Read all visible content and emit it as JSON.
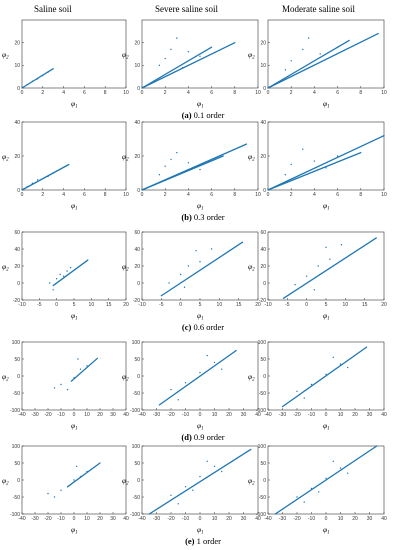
{
  "column_titles": [
    "Saline soil",
    "Severe saline soil",
    "Moderate saline soil"
  ],
  "colors": {
    "series": "#1f77b4",
    "axis": "#333333"
  },
  "axis_labels": {
    "x": "φ",
    "x_sub": "1",
    "y": "φ",
    "y_sub": "2"
  },
  "chart_data": [
    {
      "row": 0,
      "caption_letter": "(a)",
      "caption_text": " 0.1 order",
      "panels": [
        {
          "type": "scatter",
          "column": "Saline soil",
          "xlim": [
            0,
            10
          ],
          "ylim": [
            0,
            30
          ],
          "xticks": [
            0,
            2,
            4,
            6,
            8,
            10
          ],
          "yticks": [
            0,
            10,
            20
          ],
          "lines": [
            [
              [
                0,
                0
              ],
              [
                3,
                8.5
              ]
            ]
          ],
          "points": [
            [
              0.5,
              1.5
            ],
            [
              1,
              3
            ],
            [
              1.5,
              4
            ],
            [
              2,
              5.5
            ],
            [
              2.5,
              7
            ]
          ]
        },
        {
          "type": "scatter",
          "column": "Severe saline soil",
          "xlim": [
            0,
            10
          ],
          "ylim": [
            0,
            30
          ],
          "xticks": [
            0,
            2,
            4,
            6,
            8,
            10
          ],
          "yticks": [
            0,
            10,
            20
          ],
          "lines": [
            [
              [
                0,
                0
              ],
              [
                8,
                20
              ]
            ],
            [
              [
                0,
                0
              ],
              [
                6,
                18
              ]
            ]
          ],
          "points": [
            [
              2,
              13
            ],
            [
              2.5,
              17
            ],
            [
              3,
              22
            ],
            [
              4,
              16
            ],
            [
              1.5,
              10
            ],
            [
              5,
              14
            ],
            [
              3.5,
              9
            ]
          ]
        },
        {
          "type": "scatter",
          "column": "Moderate saline soil",
          "xlim": [
            0,
            10
          ],
          "ylim": [
            0,
            30
          ],
          "xticks": [
            0,
            2,
            4,
            6,
            8,
            10
          ],
          "yticks": [
            0,
            10,
            20
          ],
          "lines": [
            [
              [
                0,
                0
              ],
              [
                9.5,
                24
              ]
            ],
            [
              [
                0,
                0
              ],
              [
                7,
                21
              ]
            ]
          ],
          "points": [
            [
              2,
              12
            ],
            [
              3,
              17
            ],
            [
              3.5,
              22
            ],
            [
              4.5,
              15
            ],
            [
              1.5,
              8
            ],
            [
              6,
              18
            ]
          ]
        }
      ]
    },
    {
      "row": 1,
      "caption_letter": "(b)",
      "caption_text": " 0.3 order",
      "panels": [
        {
          "type": "scatter",
          "column": "Saline soil",
          "xlim": [
            0,
            10
          ],
          "ylim": [
            0,
            40
          ],
          "xticks": [
            0,
            2,
            4,
            6,
            8,
            10
          ],
          "yticks": [
            0,
            20,
            40
          ],
          "lines": [
            [
              [
                0,
                0
              ],
              [
                4.5,
                15
              ]
            ]
          ],
          "points": [
            [
              0.5,
              2
            ],
            [
              1,
              4
            ],
            [
              1.5,
              6
            ],
            [
              2.5,
              8
            ],
            [
              3,
              10
            ]
          ]
        },
        {
          "type": "scatter",
          "column": "Severe saline soil",
          "xlim": [
            0,
            10
          ],
          "ylim": [
            0,
            40
          ],
          "xticks": [
            0,
            2,
            4,
            6,
            8,
            10
          ],
          "yticks": [
            0,
            20,
            40
          ],
          "lines": [
            [
              [
                0,
                0
              ],
              [
                9,
                27
              ]
            ],
            [
              [
                0,
                0
              ],
              [
                7,
                20
              ]
            ]
          ],
          "points": [
            [
              2,
              14
            ],
            [
              3,
              22
            ],
            [
              2.5,
              18
            ],
            [
              4,
              16
            ],
            [
              5,
              12
            ],
            [
              1.5,
              9
            ]
          ]
        },
        {
          "type": "scatter",
          "column": "Moderate saline soil",
          "xlim": [
            0,
            10
          ],
          "ylim": [
            0,
            40
          ],
          "xticks": [
            0,
            2,
            4,
            6,
            8,
            10
          ],
          "yticks": [
            0,
            20,
            40
          ],
          "lines": [
            [
              [
                0,
                0
              ],
              [
                10,
                32
              ]
            ],
            [
              [
                0,
                0
              ],
              [
                8,
                22
              ]
            ]
          ],
          "points": [
            [
              2,
              15
            ],
            [
              3,
              24
            ],
            [
              4,
              17
            ],
            [
              5,
              13
            ],
            [
              1.5,
              9
            ],
            [
              6,
              20
            ]
          ]
        }
      ]
    },
    {
      "row": 2,
      "caption_letter": "(c)",
      "caption_text": " 0.6 order",
      "panels": [
        {
          "type": "scatter",
          "column": "Saline soil",
          "xlim": [
            -10,
            20
          ],
          "ylim": [
            -20,
            60
          ],
          "xticks": [
            -10,
            -5,
            0,
            5,
            10,
            15,
            20
          ],
          "yticks": [
            -20,
            0,
            20,
            40,
            60
          ],
          "lines": [
            [
              [
                -1,
                -3
              ],
              [
                9,
                27
              ]
            ]
          ],
          "points": [
            [
              -2,
              0
            ],
            [
              0,
              5
            ],
            [
              1,
              10
            ],
            [
              2,
              8
            ],
            [
              3,
              14
            ],
            [
              -1,
              -8
            ],
            [
              4,
              18
            ]
          ]
        },
        {
          "type": "scatter",
          "column": "Severe saline soil",
          "xlim": [
            -10,
            20
          ],
          "ylim": [
            -20,
            60
          ],
          "xticks": [
            -10,
            -5,
            0,
            5,
            10,
            15,
            20
          ],
          "yticks": [
            -20,
            0,
            20,
            40,
            60
          ],
          "lines": [
            [
              [
                -5,
                -15
              ],
              [
                16,
                48
              ]
            ]
          ],
          "points": [
            [
              -3,
              0
            ],
            [
              0,
              10
            ],
            [
              2,
              20
            ],
            [
              5,
              25
            ],
            [
              4,
              38
            ],
            [
              8,
              40
            ],
            [
              1,
              -5
            ]
          ]
        },
        {
          "type": "scatter",
          "column": "Moderate saline soil",
          "xlim": [
            -10,
            20
          ],
          "ylim": [
            -20,
            60
          ],
          "xticks": [
            -10,
            -5,
            0,
            5,
            10,
            15,
            20
          ],
          "yticks": [
            -20,
            0,
            20,
            40,
            60
          ],
          "lines": [
            [
              [
                -6,
                -18
              ],
              [
                18,
                53
              ]
            ]
          ],
          "points": [
            [
              -3,
              -2
            ],
            [
              0,
              8
            ],
            [
              3,
              20
            ],
            [
              6,
              28
            ],
            [
              5,
              42
            ],
            [
              9,
              45
            ],
            [
              2,
              -8
            ]
          ]
        }
      ]
    },
    {
      "row": 3,
      "caption_letter": "(d)",
      "caption_text": " 0.9 order",
      "panels": [
        {
          "type": "scatter",
          "column": "Saline soil",
          "xlim": [
            -40,
            40
          ],
          "ylim": [
            -100,
            100
          ],
          "xticks": [
            -40,
            -30,
            -20,
            -10,
            0,
            10,
            20,
            30,
            40
          ],
          "yticks": [
            -100,
            -50,
            0,
            50,
            100
          ],
          "lines": [
            [
              [
                -2,
                -15
              ],
              [
                18,
                52
              ]
            ]
          ],
          "points": [
            [
              -10,
              -25
            ],
            [
              -5,
              -40
            ],
            [
              0,
              -5
            ],
            [
              5,
              20
            ],
            [
              10,
              30
            ],
            [
              -15,
              -35
            ],
            [
              3,
              50
            ]
          ]
        },
        {
          "type": "scatter",
          "column": "Severe saline soil",
          "xlim": [
            -40,
            40
          ],
          "ylim": [
            -100,
            100
          ],
          "xticks": [
            -40,
            -30,
            -20,
            -10,
            0,
            10,
            20,
            30,
            40
          ],
          "yticks": [
            -100,
            -50,
            0,
            50,
            100
          ],
          "lines": [
            [
              [
                -28,
                -85
              ],
              [
                25,
                75
              ]
            ]
          ],
          "points": [
            [
              -20,
              -40
            ],
            [
              -10,
              -20
            ],
            [
              0,
              10
            ],
            [
              10,
              40
            ],
            [
              5,
              60
            ],
            [
              -15,
              -70
            ],
            [
              15,
              20
            ]
          ]
        },
        {
          "type": "scatter",
          "column": "Moderate saline soil",
          "xlim": [
            -40,
            40
          ],
          "ylim": [
            -100,
            100
          ],
          "xticks": [
            -40,
            -30,
            -20,
            -10,
            0,
            10,
            20,
            30,
            40
          ],
          "yticks": [
            -100,
            -50,
            0,
            50,
            100
          ],
          "lines": [
            [
              [
                -30,
                -90
              ],
              [
                28,
                85
              ]
            ]
          ],
          "points": [
            [
              -20,
              -45
            ],
            [
              -10,
              -25
            ],
            [
              0,
              5
            ],
            [
              10,
              35
            ],
            [
              5,
              55
            ],
            [
              -15,
              -65
            ],
            [
              15,
              25
            ]
          ]
        }
      ]
    },
    {
      "row": 4,
      "caption_letter": "(e)",
      "caption_text": " 1 order",
      "panels": [
        {
          "type": "scatter",
          "column": "Saline soil",
          "xlim": [
            -40,
            40
          ],
          "ylim": [
            -100,
            100
          ],
          "xticks": [
            -40,
            -30,
            -20,
            -10,
            0,
            10,
            20,
            30,
            40
          ],
          "yticks": [
            -100,
            -50,
            0,
            50,
            100
          ],
          "lines": [
            [
              [
                -5,
                -20
              ],
              [
                20,
                50
              ]
            ]
          ],
          "points": [
            [
              -10,
              -30
            ],
            [
              -15,
              -50
            ],
            [
              0,
              0
            ],
            [
              5,
              10
            ],
            [
              10,
              25
            ],
            [
              -20,
              -40
            ],
            [
              2,
              40
            ]
          ]
        },
        {
          "type": "scatter",
          "column": "Severe saline soil",
          "xlim": [
            -40,
            40
          ],
          "ylim": [
            -100,
            100
          ],
          "xticks": [
            -40,
            -30,
            -20,
            -10,
            0,
            10,
            20,
            30,
            40
          ],
          "yticks": [
            -100,
            -50,
            0,
            50,
            100
          ],
          "lines": [
            [
              [
                -35,
                -100
              ],
              [
                35,
                90
              ]
            ]
          ],
          "points": [
            [
              -20,
              -45
            ],
            [
              -10,
              -20
            ],
            [
              0,
              10
            ],
            [
              10,
              40
            ],
            [
              5,
              55
            ],
            [
              -15,
              -70
            ],
            [
              15,
              25
            ],
            [
              -5,
              -30
            ]
          ]
        },
        {
          "type": "scatter",
          "column": "Moderate saline soil",
          "xlim": [
            -40,
            40
          ],
          "ylim": [
            -100,
            100
          ],
          "xticks": [
            -40,
            -30,
            -20,
            -10,
            0,
            10,
            20,
            30,
            40
          ],
          "yticks": [
            -100,
            -50,
            0,
            50,
            100
          ],
          "lines": [
            [
              [
                -35,
                -100
              ],
              [
                35,
                100
              ]
            ]
          ],
          "points": [
            [
              -20,
              -50
            ],
            [
              -10,
              -25
            ],
            [
              0,
              5
            ],
            [
              10,
              35
            ],
            [
              5,
              55
            ],
            [
              -15,
              -65
            ],
            [
              15,
              20
            ],
            [
              -5,
              -35
            ]
          ]
        }
      ]
    }
  ]
}
